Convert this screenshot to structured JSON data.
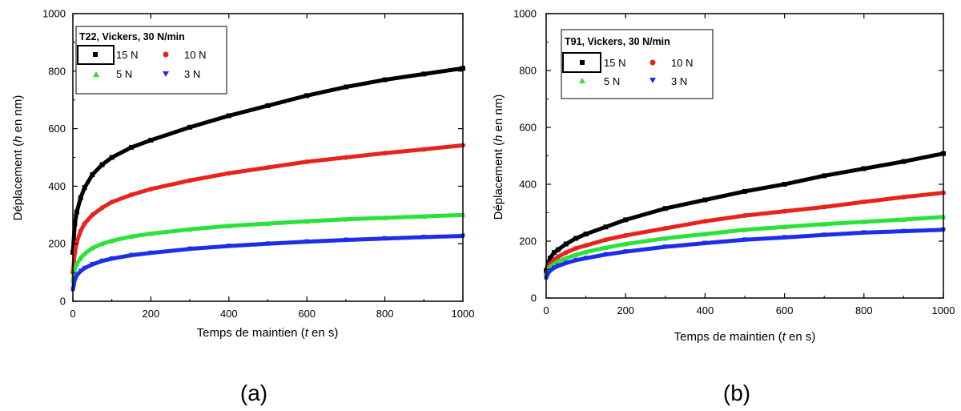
{
  "chart_data": [
    {
      "type": "scatter",
      "panel_label": "(a)",
      "legend_title": "T22, Vickers, 30 N/min",
      "xlabel_prefix": "Temps de maintien (",
      "xlabel_var": "t",
      "xlabel_suffix": " en s)",
      "ylabel_prefix": "Déplacement (",
      "ylabel_var": "h",
      "ylabel_suffix": " en nm)",
      "xlim": [
        0,
        1000
      ],
      "ylim": [
        0,
        1000
      ],
      "xticks": [
        "0",
        "200",
        "400",
        "600",
        "800",
        "1000"
      ],
      "yticks": [
        "0",
        "200",
        "400",
        "600",
        "800",
        "1000"
      ],
      "series": [
        {
          "name": "15 N",
          "color": "#000000",
          "marker": "square",
          "points": [
            [
              0,
              170
            ],
            [
              5,
              270
            ],
            [
              10,
              310
            ],
            [
              20,
              360
            ],
            [
              30,
              395
            ],
            [
              50,
              440
            ],
            [
              75,
              475
            ],
            [
              100,
              500
            ],
            [
              150,
              535
            ],
            [
              200,
              560
            ],
            [
              300,
              605
            ],
            [
              400,
              645
            ],
            [
              500,
              680
            ],
            [
              600,
              715
            ],
            [
              700,
              745
            ],
            [
              800,
              770
            ],
            [
              900,
              790
            ],
            [
              1000,
              810
            ]
          ]
        },
        {
          "name": "10 N",
          "color": "#e8221c",
          "marker": "circle",
          "points": [
            [
              0,
              100
            ],
            [
              5,
              170
            ],
            [
              10,
              205
            ],
            [
              20,
              245
            ],
            [
              30,
              270
            ],
            [
              50,
              300
            ],
            [
              75,
              325
            ],
            [
              100,
              345
            ],
            [
              150,
              370
            ],
            [
              200,
              390
            ],
            [
              300,
              420
            ],
            [
              400,
              445
            ],
            [
              500,
              465
            ],
            [
              600,
              485
            ],
            [
              700,
              500
            ],
            [
              800,
              515
            ],
            [
              900,
              528
            ],
            [
              1000,
              542
            ]
          ]
        },
        {
          "name": "5 N",
          "color": "#2ae23a",
          "marker": "triangle-up",
          "points": [
            [
              0,
              70
            ],
            [
              5,
              110
            ],
            [
              10,
              130
            ],
            [
              20,
              150
            ],
            [
              30,
              165
            ],
            [
              50,
              185
            ],
            [
              75,
              200
            ],
            [
              100,
              210
            ],
            [
              150,
              225
            ],
            [
              200,
              235
            ],
            [
              300,
              250
            ],
            [
              400,
              262
            ],
            [
              500,
              270
            ],
            [
              600,
              278
            ],
            [
              700,
              285
            ],
            [
              800,
              290
            ],
            [
              900,
              295
            ],
            [
              1000,
              300
            ]
          ]
        },
        {
          "name": "3 N",
          "color": "#1d2ee8",
          "marker": "triangle-down",
          "points": [
            [
              0,
              40
            ],
            [
              5,
              75
            ],
            [
              10,
              90
            ],
            [
              20,
              105
            ],
            [
              30,
              115
            ],
            [
              50,
              128
            ],
            [
              75,
              140
            ],
            [
              100,
              148
            ],
            [
              150,
              160
            ],
            [
              200,
              168
            ],
            [
              300,
              182
            ],
            [
              400,
              192
            ],
            [
              500,
              200
            ],
            [
              600,
              207
            ],
            [
              700,
              213
            ],
            [
              800,
              218
            ],
            [
              900,
              223
            ],
            [
              1000,
              227
            ]
          ]
        }
      ]
    },
    {
      "type": "scatter",
      "panel_label": "(b)",
      "legend_title": "T91, Vickers, 30 N/min",
      "xlabel_prefix": "Temps de maintien (",
      "xlabel_var": "t",
      "xlabel_suffix": " en s)",
      "ylabel_prefix": "Déplacement (",
      "ylabel_var": "h",
      "ylabel_suffix": " en nm)",
      "xlim": [
        0,
        1000
      ],
      "ylim": [
        0,
        1000
      ],
      "xticks": [
        "0",
        "200",
        "400",
        "600",
        "800",
        "1000"
      ],
      "yticks": [
        "0",
        "200",
        "400",
        "600",
        "800",
        "1000"
      ],
      "series": [
        {
          "name": "15 N",
          "color": "#000000",
          "marker": "square",
          "points": [
            [
              0,
              95
            ],
            [
              5,
              125
            ],
            [
              10,
              140
            ],
            [
              20,
              160
            ],
            [
              30,
              170
            ],
            [
              50,
              190
            ],
            [
              75,
              210
            ],
            [
              100,
              225
            ],
            [
              150,
              250
            ],
            [
              200,
              275
            ],
            [
              300,
              315
            ],
            [
              400,
              345
            ],
            [
              500,
              375
            ],
            [
              600,
              400
            ],
            [
              700,
              430
            ],
            [
              800,
              455
            ],
            [
              900,
              480
            ],
            [
              1000,
              508
            ]
          ]
        },
        {
          "name": "10 N",
          "color": "#e8221c",
          "marker": "circle",
          "points": [
            [
              0,
              85
            ],
            [
              5,
              110
            ],
            [
              10,
              120
            ],
            [
              20,
              135
            ],
            [
              30,
              145
            ],
            [
              50,
              160
            ],
            [
              75,
              175
            ],
            [
              100,
              185
            ],
            [
              150,
              205
            ],
            [
              200,
              220
            ],
            [
              300,
              245
            ],
            [
              400,
              270
            ],
            [
              500,
              290
            ],
            [
              600,
              305
            ],
            [
              700,
              320
            ],
            [
              800,
              338
            ],
            [
              900,
              355
            ],
            [
              1000,
              370
            ]
          ]
        },
        {
          "name": "5 N",
          "color": "#2ae23a",
          "marker": "triangle-up",
          "points": [
            [
              0,
              80
            ],
            [
              5,
              100
            ],
            [
              10,
              110
            ],
            [
              20,
              120
            ],
            [
              30,
              128
            ],
            [
              50,
              140
            ],
            [
              75,
              152
            ],
            [
              100,
              162
            ],
            [
              150,
              177
            ],
            [
              200,
              190
            ],
            [
              300,
              210
            ],
            [
              400,
              225
            ],
            [
              500,
              240
            ],
            [
              600,
              250
            ],
            [
              700,
              260
            ],
            [
              800,
              268
            ],
            [
              900,
              276
            ],
            [
              1000,
              285
            ]
          ]
        },
        {
          "name": "3 N",
          "color": "#1d2ee8",
          "marker": "triangle-down",
          "points": [
            [
              0,
              70
            ],
            [
              5,
              88
            ],
            [
              10,
              96
            ],
            [
              20,
              106
            ],
            [
              30,
              113
            ],
            [
              50,
              123
            ],
            [
              75,
              133
            ],
            [
              100,
              140
            ],
            [
              150,
              153
            ],
            [
              200,
              163
            ],
            [
              300,
              180
            ],
            [
              400,
              193
            ],
            [
              500,
              205
            ],
            [
              600,
              213
            ],
            [
              700,
              222
            ],
            [
              800,
              230
            ],
            [
              900,
              235
            ],
            [
              1000,
              240
            ]
          ]
        }
      ]
    }
  ]
}
